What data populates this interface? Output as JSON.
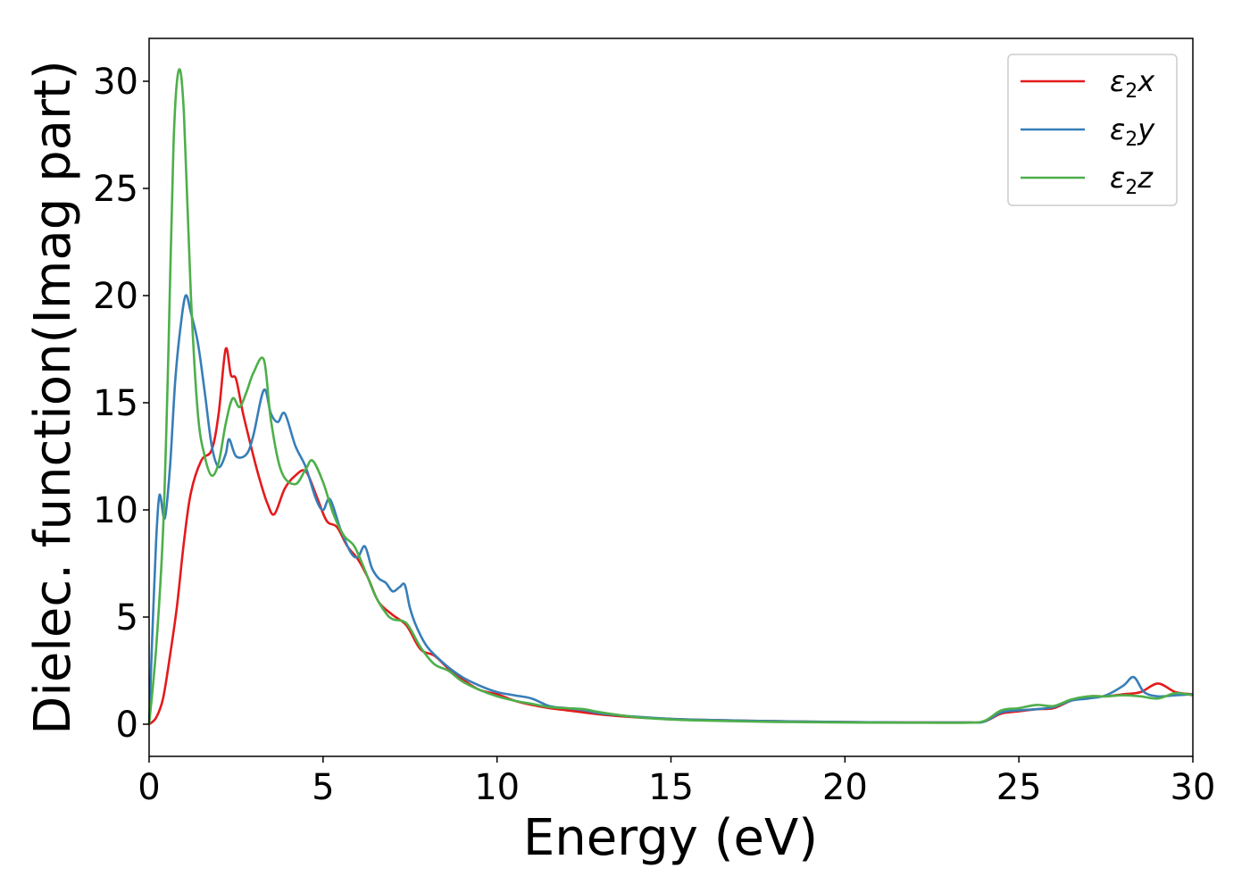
{
  "chart_data": {
    "type": "line",
    "title": "",
    "xlabel": "Energy (eV)",
    "ylabel": "Dielec. function(Imag part)",
    "xlim": [
      0,
      30
    ],
    "ylim": [
      -1.5,
      32
    ],
    "xticks": [
      0,
      5,
      10,
      15,
      20,
      25,
      30
    ],
    "yticks": [
      0,
      5,
      10,
      15,
      20,
      25,
      30
    ],
    "grid": false,
    "legend_position": "top-right",
    "series": [
      {
        "name": "ε2x",
        "legend_base": "ε",
        "legend_sub": "2",
        "legend_var": "x",
        "color": "#e41a1c",
        "points": [
          [
            0,
            0
          ],
          [
            0.2,
            0.3
          ],
          [
            0.4,
            1.2
          ],
          [
            0.6,
            3.2
          ],
          [
            0.8,
            5.5
          ],
          [
            1.0,
            8.5
          ],
          [
            1.2,
            10.8
          ],
          [
            1.5,
            12.3
          ],
          [
            1.8,
            12.8
          ],
          [
            2.0,
            14.5
          ],
          [
            2.2,
            17.5
          ],
          [
            2.35,
            16.3
          ],
          [
            2.5,
            16.1
          ],
          [
            2.7,
            14.5
          ],
          [
            3.0,
            12.5
          ],
          [
            3.2,
            11.3
          ],
          [
            3.4,
            10.3
          ],
          [
            3.6,
            9.8
          ],
          [
            3.9,
            11.0
          ],
          [
            4.2,
            11.6
          ],
          [
            4.5,
            11.8
          ],
          [
            4.8,
            10.7
          ],
          [
            5.1,
            9.5
          ],
          [
            5.4,
            9.2
          ],
          [
            5.7,
            8.3
          ],
          [
            6.0,
            7.7
          ],
          [
            6.3,
            6.8
          ],
          [
            6.6,
            5.7
          ],
          [
            7.0,
            5.1
          ],
          [
            7.4,
            4.6
          ],
          [
            7.8,
            3.5
          ],
          [
            8.2,
            3.2
          ],
          [
            8.6,
            2.6
          ],
          [
            9.0,
            2.1
          ],
          [
            9.5,
            1.6
          ],
          [
            10.0,
            1.4
          ],
          [
            10.5,
            1.1
          ],
          [
            11.0,
            0.9
          ],
          [
            11.5,
            0.75
          ],
          [
            12.0,
            0.65
          ],
          [
            12.5,
            0.55
          ],
          [
            13.0,
            0.45
          ],
          [
            14.0,
            0.32
          ],
          [
            15.0,
            0.25
          ],
          [
            16.0,
            0.2
          ],
          [
            18.0,
            0.14
          ],
          [
            20.0,
            0.1
          ],
          [
            22.0,
            0.08
          ],
          [
            23.5,
            0.08
          ],
          [
            24.0,
            0.12
          ],
          [
            24.5,
            0.5
          ],
          [
            25.0,
            0.6
          ],
          [
            25.5,
            0.7
          ],
          [
            26.0,
            0.75
          ],
          [
            26.5,
            1.1
          ],
          [
            27.0,
            1.3
          ],
          [
            27.5,
            1.3
          ],
          [
            28.0,
            1.4
          ],
          [
            28.5,
            1.5
          ],
          [
            29.0,
            1.9
          ],
          [
            29.5,
            1.5
          ],
          [
            30.0,
            1.4
          ]
        ]
      },
      {
        "name": "ε2y",
        "legend_base": "ε",
        "legend_sub": "2",
        "legend_var": "y",
        "color": "#377eb8",
        "points": [
          [
            0,
            0
          ],
          [
            0.1,
            4.5
          ],
          [
            0.2,
            8.5
          ],
          [
            0.3,
            10.7
          ],
          [
            0.45,
            9.6
          ],
          [
            0.6,
            12.0
          ],
          [
            0.75,
            16.0
          ],
          [
            0.9,
            18.5
          ],
          [
            1.05,
            20.0
          ],
          [
            1.2,
            19.2
          ],
          [
            1.4,
            17.8
          ],
          [
            1.6,
            15.5
          ],
          [
            1.8,
            13.0
          ],
          [
            2.0,
            12.0
          ],
          [
            2.2,
            12.6
          ],
          [
            2.3,
            13.3
          ],
          [
            2.5,
            12.5
          ],
          [
            2.8,
            12.6
          ],
          [
            3.0,
            13.5
          ],
          [
            3.3,
            15.6
          ],
          [
            3.5,
            14.5
          ],
          [
            3.7,
            14.1
          ],
          [
            3.9,
            14.5
          ],
          [
            4.2,
            13.0
          ],
          [
            4.5,
            12.0
          ],
          [
            4.8,
            10.5
          ],
          [
            5.0,
            10.0
          ],
          [
            5.2,
            10.5
          ],
          [
            5.5,
            9.1
          ],
          [
            5.8,
            8.0
          ],
          [
            6.0,
            7.8
          ],
          [
            6.2,
            8.3
          ],
          [
            6.4,
            7.3
          ],
          [
            6.6,
            6.8
          ],
          [
            6.8,
            6.6
          ],
          [
            7.0,
            6.2
          ],
          [
            7.2,
            6.4
          ],
          [
            7.35,
            6.5
          ],
          [
            7.5,
            5.4
          ],
          [
            7.7,
            4.5
          ],
          [
            8.0,
            3.6
          ],
          [
            8.5,
            2.8
          ],
          [
            9.0,
            2.2
          ],
          [
            9.5,
            1.8
          ],
          [
            10.0,
            1.5
          ],
          [
            10.5,
            1.35
          ],
          [
            11.0,
            1.2
          ],
          [
            11.5,
            0.85
          ],
          [
            12.0,
            0.75
          ],
          [
            12.5,
            0.65
          ],
          [
            13.0,
            0.5
          ],
          [
            14.0,
            0.35
          ],
          [
            15.0,
            0.25
          ],
          [
            16.0,
            0.2
          ],
          [
            18.0,
            0.14
          ],
          [
            20.0,
            0.1
          ],
          [
            22.0,
            0.08
          ],
          [
            23.5,
            0.08
          ],
          [
            24.0,
            0.12
          ],
          [
            24.5,
            0.55
          ],
          [
            25.0,
            0.65
          ],
          [
            25.5,
            0.7
          ],
          [
            26.0,
            0.8
          ],
          [
            26.5,
            1.1
          ],
          [
            27.0,
            1.2
          ],
          [
            27.5,
            1.35
          ],
          [
            28.0,
            1.8
          ],
          [
            28.3,
            2.2
          ],
          [
            28.6,
            1.5
          ],
          [
            29.0,
            1.3
          ],
          [
            29.5,
            1.35
          ],
          [
            30.0,
            1.4
          ]
        ]
      },
      {
        "name": "ε2z",
        "legend_base": "ε",
        "legend_sub": "2",
        "legend_var": "z",
        "color": "#4daf4a",
        "points": [
          [
            0,
            0
          ],
          [
            0.2,
            3.5
          ],
          [
            0.4,
            9.0
          ],
          [
            0.55,
            17.0
          ],
          [
            0.7,
            27.0
          ],
          [
            0.85,
            30.5
          ],
          [
            1.0,
            28.5
          ],
          [
            1.2,
            20.0
          ],
          [
            1.4,
            14.5
          ],
          [
            1.6,
            12.5
          ],
          [
            1.8,
            11.6
          ],
          [
            2.0,
            12.2
          ],
          [
            2.2,
            14.0
          ],
          [
            2.4,
            15.2
          ],
          [
            2.6,
            14.8
          ],
          [
            2.8,
            15.5
          ],
          [
            3.0,
            16.4
          ],
          [
            3.3,
            17.0
          ],
          [
            3.5,
            14.2
          ],
          [
            3.8,
            11.8
          ],
          [
            4.2,
            11.2
          ],
          [
            4.5,
            11.9
          ],
          [
            4.7,
            12.3
          ],
          [
            5.0,
            11.3
          ],
          [
            5.3,
            9.8
          ],
          [
            5.6,
            8.8
          ],
          [
            5.9,
            8.3
          ],
          [
            6.2,
            7.2
          ],
          [
            6.5,
            6.0
          ],
          [
            6.8,
            5.2
          ],
          [
            7.0,
            4.9
          ],
          [
            7.4,
            4.7
          ],
          [
            7.8,
            3.6
          ],
          [
            8.2,
            2.8
          ],
          [
            8.6,
            2.5
          ],
          [
            9.0,
            2.0
          ],
          [
            9.5,
            1.6
          ],
          [
            10.0,
            1.3
          ],
          [
            10.5,
            1.1
          ],
          [
            11.0,
            0.95
          ],
          [
            11.5,
            0.8
          ],
          [
            12.0,
            0.75
          ],
          [
            12.5,
            0.7
          ],
          [
            13.0,
            0.55
          ],
          [
            14.0,
            0.33
          ],
          [
            15.0,
            0.22
          ],
          [
            16.0,
            0.17
          ],
          [
            18.0,
            0.11
          ],
          [
            20.0,
            0.08
          ],
          [
            22.0,
            0.07
          ],
          [
            23.5,
            0.07
          ],
          [
            24.0,
            0.15
          ],
          [
            24.5,
            0.65
          ],
          [
            25.0,
            0.75
          ],
          [
            25.5,
            0.9
          ],
          [
            26.0,
            0.85
          ],
          [
            26.5,
            1.15
          ],
          [
            27.0,
            1.3
          ],
          [
            27.5,
            1.3
          ],
          [
            28.0,
            1.35
          ],
          [
            28.5,
            1.3
          ],
          [
            29.0,
            1.2
          ],
          [
            29.5,
            1.45
          ],
          [
            30.0,
            1.35
          ]
        ]
      }
    ]
  }
}
